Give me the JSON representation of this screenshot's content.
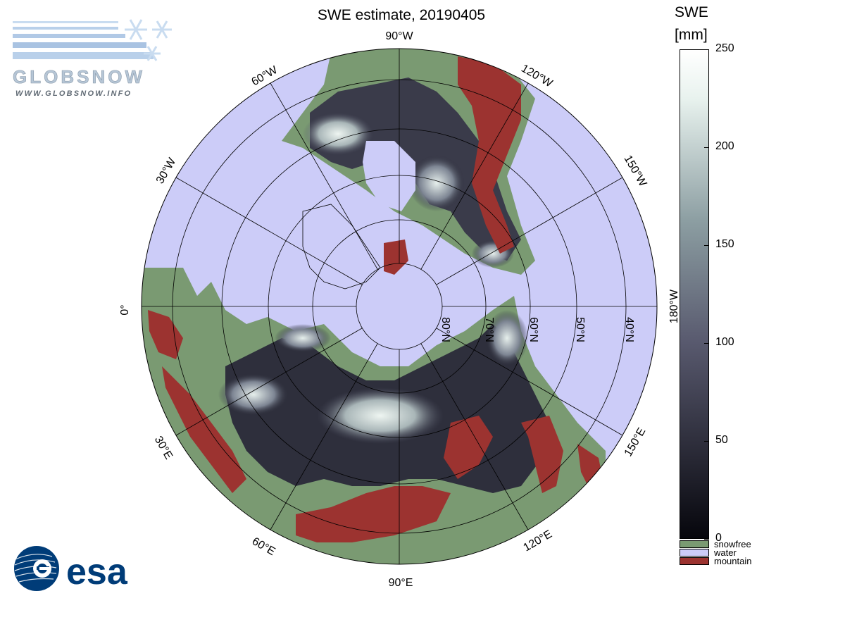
{
  "title": "SWE estimate, 20190405",
  "logos": {
    "globsnow_text": "GLOBSNOW",
    "globsnow_url": "WWW.GLOBSNOW.INFO",
    "esa_text": "esa"
  },
  "map": {
    "projection": "north-polar-stereographic",
    "longitude_labels": [
      {
        "lon": 90,
        "text": "90°W"
      },
      {
        "lon": 60,
        "text": "60°W"
      },
      {
        "lon": 120,
        "text": "120°W"
      },
      {
        "lon": 30,
        "text": "30°W"
      },
      {
        "lon": 150,
        "text": "150°W"
      },
      {
        "lon": 0,
        "text": "0°"
      },
      {
        "lon": 180,
        "text": "180°W"
      },
      {
        "lon": -30,
        "text": "30°E"
      },
      {
        "lon": -150,
        "text": "150°E"
      },
      {
        "lon": -60,
        "text": "60°E"
      },
      {
        "lon": -120,
        "text": "120°E"
      },
      {
        "lon": -90,
        "text": "90°E"
      }
    ],
    "latitude_labels": [
      {
        "lat": 80,
        "text": "80°N"
      },
      {
        "lat": 70,
        "text": "70°N"
      },
      {
        "lat": 60,
        "text": "60°N"
      },
      {
        "lat": 50,
        "text": "50°N"
      },
      {
        "lat": 40,
        "text": "40°N"
      }
    ],
    "colors": {
      "water": "#ccccf8",
      "snowfree": "#7a9a72",
      "mountain": "#9c3330",
      "snow_low": "#06060c",
      "snow_mid": "#58596e",
      "snow_high": "#e8f2ee"
    }
  },
  "colorbar": {
    "title_line1": "SWE",
    "title_line2": "[mm]",
    "min": 0,
    "max": 250,
    "ticks": [
      {
        "value": 250,
        "label": "250"
      },
      {
        "value": 200,
        "label": "200"
      },
      {
        "value": 150,
        "label": "150"
      },
      {
        "value": 100,
        "label": "100"
      },
      {
        "value": 50,
        "label": "50"
      },
      {
        "value": 0,
        "label": "0"
      }
    ],
    "legend": [
      {
        "label": "snowfree",
        "color": "#7a9a72"
      },
      {
        "label": "water",
        "color": "#ccccf8"
      },
      {
        "label": "mountain",
        "color": "#9c3330"
      }
    ]
  }
}
